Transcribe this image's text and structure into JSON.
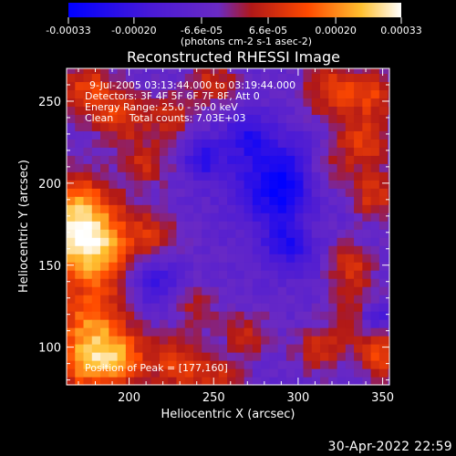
{
  "chart_data": {
    "type": "heatmap",
    "title": "Reconstructed RHESSI Image",
    "xlabel": "Heliocentric X (arcsec)",
    "ylabel": "Heliocentric Y (arcsec)",
    "xlim": [
      163,
      354
    ],
    "ylim": [
      77,
      270
    ],
    "x_ticks": [
      200,
      250,
      300,
      350
    ],
    "y_ticks": [
      100,
      150,
      200,
      250
    ],
    "colorbar": {
      "ticks": [
        "-0.00033",
        "-0.00020",
        "-6.6e-05",
        "6.6e-05",
        "0.00020",
        "0.00033"
      ],
      "tick_values": [
        -0.00033,
        -0.0002,
        -6.6e-05,
        6.6e-05,
        0.0002,
        0.00033
      ],
      "range": [
        -0.00033,
        0.00033
      ],
      "unit_label": "(photons cm-2 s-1 asec-2)",
      "colors": [
        "#0000ff",
        "#5a22cc",
        "#6a2ac4",
        "#c21a10",
        "#ff6a00",
        "#ffd040",
        "#ffffff"
      ]
    },
    "info_lines": [
      "9-Jul-2005 03:13:44.000 to 03:19:44.000",
      "Detectors: 3F 4F 5F 6F 7F 8F, Att 0",
      "Energy Range: 25.0 - 50.0 keV",
      "Clean     Total counts: 7.03E+03"
    ],
    "peak_label": "Position of Peak = [177,160]",
    "peak": [
      177,
      160
    ],
    "blobs": [
      {
        "x": 177,
        "y": 160,
        "r": 18,
        "v": 0.00033
      },
      {
        "x": 168,
        "y": 185,
        "r": 16,
        "v": 0.00022
      },
      {
        "x": 178,
        "y": 112,
        "r": 15,
        "v": 0.00024
      },
      {
        "x": 195,
        "y": 92,
        "r": 12,
        "v": 0.00022
      },
      {
        "x": 172,
        "y": 88,
        "r": 12,
        "v": 0.0002
      },
      {
        "x": 230,
        "y": 90,
        "r": 12,
        "v": 0.00018
      },
      {
        "x": 175,
        "y": 258,
        "r": 12,
        "v": 0.00018
      },
      {
        "x": 195,
        "y": 240,
        "r": 11,
        "v": 0.00016
      },
      {
        "x": 225,
        "y": 242,
        "r": 10,
        "v": 0.00014
      },
      {
        "x": 210,
        "y": 212,
        "r": 10,
        "v": 0.00014
      },
      {
        "x": 215,
        "y": 170,
        "r": 10,
        "v": 0.00012
      },
      {
        "x": 250,
        "y": 262,
        "r": 10,
        "v": 0.00014
      },
      {
        "x": 320,
        "y": 258,
        "r": 12,
        "v": 0.00018
      },
      {
        "x": 345,
        "y": 255,
        "r": 10,
        "v": 0.00016
      },
      {
        "x": 338,
        "y": 225,
        "r": 12,
        "v": 0.00018
      },
      {
        "x": 315,
        "y": 205,
        "r": 10,
        "v": 0.00014
      },
      {
        "x": 345,
        "y": 192,
        "r": 10,
        "v": 0.00016
      },
      {
        "x": 305,
        "y": 172,
        "r": 10,
        "v": 0.00014
      },
      {
        "x": 330,
        "y": 150,
        "r": 10,
        "v": 0.00016
      },
      {
        "x": 338,
        "y": 118,
        "r": 12,
        "v": 0.00018
      },
      {
        "x": 350,
        "y": 95,
        "r": 10,
        "v": 0.00018
      },
      {
        "x": 312,
        "y": 98,
        "r": 10,
        "v": 0.00014
      },
      {
        "x": 270,
        "y": 108,
        "r": 10,
        "v": 0.00012
      },
      {
        "x": 255,
        "y": 80,
        "r": 10,
        "v": 0.00012
      },
      {
        "x": 240,
        "y": 125,
        "r": 9,
        "v": 0.0001
      },
      {
        "x": 290,
        "y": 200,
        "r": 18,
        "v": -0.00026
      },
      {
        "x": 298,
        "y": 165,
        "r": 12,
        "v": -0.00022
      },
      {
        "x": 345,
        "y": 118,
        "r": 8,
        "v": -0.00024
      },
      {
        "x": 245,
        "y": 215,
        "r": 9,
        "v": -0.00016
      },
      {
        "x": 215,
        "y": 140,
        "r": 10,
        "v": -0.00014
      },
      {
        "x": 270,
        "y": 230,
        "r": 10,
        "v": -0.00014
      }
    ]
  },
  "footer_timestamp": "30-Apr-2022 22:59"
}
